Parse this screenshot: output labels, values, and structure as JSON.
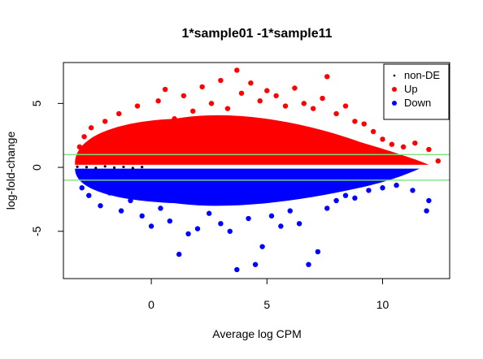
{
  "chart_data": {
    "type": "scatter",
    "title": "1*sample01 -1*sample11",
    "xlabel": "Average log CPM",
    "ylabel": "log-fold-change",
    "xlim": [
      -3.8,
      12.9
    ],
    "ylim": [
      -8.7,
      8.2
    ],
    "x_ticks": [
      0,
      5,
      10
    ],
    "y_ticks": [
      -5,
      0,
      5
    ],
    "x_tick_labels": [
      "0",
      "5",
      "10"
    ],
    "y_tick_labels": [
      "-5",
      "0",
      "5"
    ],
    "reference_lines": [
      1,
      -1
    ],
    "reference_line_color": "#7fe07f",
    "grid": false,
    "legend": {
      "position": "top-right",
      "entries": [
        {
          "label": "non-DE",
          "color": "#000000"
        },
        {
          "label": "Up",
          "color": "#ff0000"
        },
        {
          "label": "Down",
          "color": "#0000ff"
        }
      ]
    },
    "series": [
      {
        "name": "non-DE",
        "color": "#000000",
        "points": [
          [
            -3.2,
            0.05
          ],
          [
            -2.8,
            0.02
          ],
          [
            -2.4,
            -0.05
          ],
          [
            -2.0,
            0.08
          ],
          [
            -1.6,
            -0.02
          ],
          [
            -1.2,
            0.04
          ],
          [
            -0.8,
            -0.06
          ],
          [
            -0.4,
            0.03
          ]
        ]
      },
      {
        "name": "Up",
        "color": "#ff0000",
        "points": [
          [
            -3.1,
            1.6
          ],
          [
            -2.9,
            2.4
          ],
          [
            -2.6,
            3.1
          ],
          [
            -2.3,
            2.0
          ],
          [
            -2.0,
            3.6
          ],
          [
            -1.8,
            1.4
          ],
          [
            -1.4,
            4.2
          ],
          [
            -1.0,
            3.0
          ],
          [
            -0.6,
            4.8
          ],
          [
            -0.2,
            2.6
          ],
          [
            0.3,
            5.2
          ],
          [
            0.6,
            6.1
          ],
          [
            1.0,
            3.8
          ],
          [
            1.4,
            5.6
          ],
          [
            1.8,
            4.4
          ],
          [
            2.2,
            6.3
          ],
          [
            2.6,
            5.0
          ],
          [
            3.0,
            6.8
          ],
          [
            3.3,
            4.6
          ],
          [
            3.7,
            7.6
          ],
          [
            3.9,
            5.8
          ],
          [
            4.3,
            6.6
          ],
          [
            4.7,
            5.2
          ],
          [
            5.0,
            6.0
          ],
          [
            5.4,
            5.6
          ],
          [
            5.8,
            4.8
          ],
          [
            6.2,
            6.2
          ],
          [
            6.6,
            5.0
          ],
          [
            7.0,
            4.6
          ],
          [
            7.4,
            5.4
          ],
          [
            7.6,
            7.1
          ],
          [
            8.0,
            4.2
          ],
          [
            8.4,
            4.8
          ],
          [
            8.8,
            3.6
          ],
          [
            9.2,
            3.4
          ],
          [
            9.6,
            2.8
          ],
          [
            10.0,
            2.2
          ],
          [
            10.4,
            1.8
          ],
          [
            10.9,
            1.6
          ],
          [
            11.4,
            1.9
          ],
          [
            12.0,
            1.4
          ],
          [
            12.4,
            0.5
          ]
        ]
      },
      {
        "name": "Down",
        "color": "#0000ff",
        "points": [
          [
            -3.0,
            -1.6
          ],
          [
            -2.7,
            -2.2
          ],
          [
            -2.2,
            -3.0
          ],
          [
            -1.8,
            -2.0
          ],
          [
            -1.3,
            -3.4
          ],
          [
            -0.9,
            -2.6
          ],
          [
            -0.4,
            -3.8
          ],
          [
            0.0,
            -4.6
          ],
          [
            0.4,
            -3.2
          ],
          [
            0.8,
            -4.2
          ],
          [
            1.2,
            -6.8
          ],
          [
            1.6,
            -5.2
          ],
          [
            2.0,
            -4.8
          ],
          [
            2.5,
            -3.6
          ],
          [
            3.0,
            -4.4
          ],
          [
            3.4,
            -5.0
          ],
          [
            3.7,
            -8.0
          ],
          [
            4.2,
            -4.0
          ],
          [
            4.5,
            -7.6
          ],
          [
            4.8,
            -6.2
          ],
          [
            5.2,
            -3.8
          ],
          [
            5.6,
            -4.6
          ],
          [
            6.0,
            -3.4
          ],
          [
            6.4,
            -4.4
          ],
          [
            6.8,
            -7.6
          ],
          [
            7.2,
            -6.6
          ],
          [
            7.6,
            -3.2
          ],
          [
            8.0,
            -2.6
          ],
          [
            8.4,
            -2.2
          ],
          [
            8.8,
            -2.4
          ],
          [
            9.4,
            -1.8
          ],
          [
            10.0,
            -1.6
          ],
          [
            10.6,
            -1.4
          ],
          [
            11.3,
            -1.8
          ],
          [
            11.9,
            -3.4
          ],
          [
            12.0,
            -2.6
          ]
        ]
      }
    ]
  }
}
